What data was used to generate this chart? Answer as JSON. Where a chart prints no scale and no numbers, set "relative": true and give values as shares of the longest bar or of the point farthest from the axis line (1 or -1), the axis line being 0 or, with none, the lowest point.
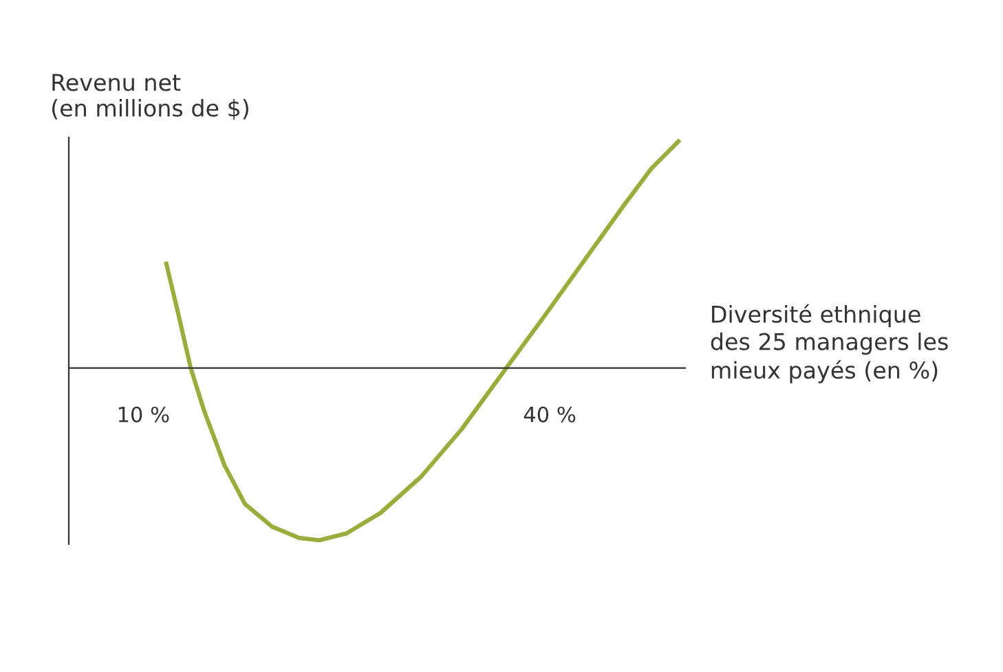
{
  "chart_data": {
    "type": "line",
    "relative": true,
    "ylabel": "Revenu net\n(en millions de $)",
    "xlabel": "Diversité ethnique\ndes 25 managers les\nmieux payés (en %)",
    "xlim": [
      4.5,
      50
    ],
    "xticks": [
      {
        "value": 10,
        "label": "10 %"
      },
      {
        "value": 40,
        "label": "40 %"
      }
    ],
    "grid": false,
    "legend": false,
    "series": [
      {
        "color": "#9bab3c",
        "line_style": "solid",
        "marker": "none",
        "x": [
          11.7,
          12.5,
          13.5,
          14.5,
          16.0,
          17.5,
          19.5,
          21.5,
          23.0,
          25.0,
          27.5,
          30.5,
          33.5,
          36.8,
          39.5,
          42.5,
          45.5,
          47.5,
          49.5
        ],
        "values": [
          0.46,
          0.26,
          0,
          -0.19,
          -0.43,
          -0.6,
          -0.7,
          -0.75,
          -0.76,
          -0.73,
          -0.64,
          -0.48,
          -0.27,
          0,
          0.22,
          0.47,
          0.72,
          0.88,
          1.0
        ]
      }
    ]
  }
}
